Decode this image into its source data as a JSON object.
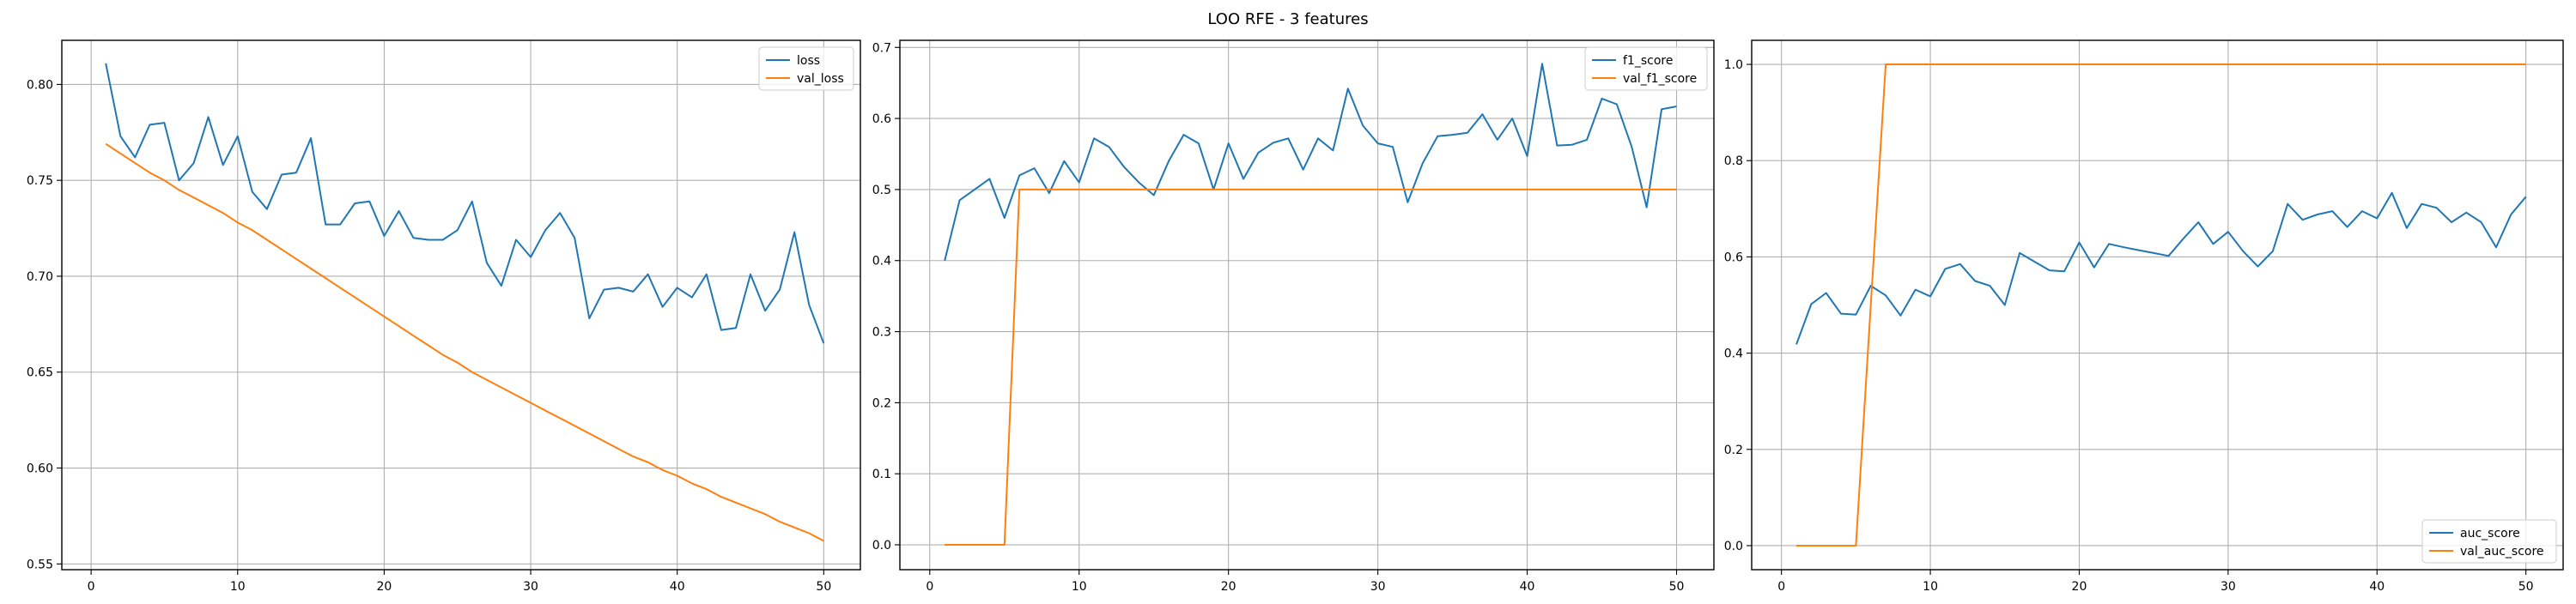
{
  "figure": {
    "suptitle": "LOO RFE - 3 features"
  },
  "colors": {
    "blue": "#1f77b4",
    "orange": "#ff7f0e"
  },
  "chart_data": [
    {
      "type": "line",
      "title": "",
      "xlabel": "",
      "ylabel": "",
      "xlim": [
        -2,
        52.5
      ],
      "ylim": [
        0.547,
        0.823
      ],
      "xticks": [
        0,
        10,
        20,
        30,
        40,
        50
      ],
      "yticks": [
        0.55,
        0.6,
        0.65,
        0.7,
        0.75,
        0.8
      ],
      "ytick_decimals": 2,
      "grid": true,
      "legend": "upper right",
      "series": [
        {
          "name": "loss",
          "color": "#1f77b4",
          "x": [
            1,
            2,
            3,
            4,
            5,
            6,
            7,
            8,
            9,
            10,
            11,
            12,
            13,
            14,
            15,
            16,
            17,
            18,
            19,
            20,
            21,
            22,
            23,
            24,
            25,
            26,
            27,
            28,
            29,
            30,
            31,
            32,
            33,
            34,
            35,
            36,
            37,
            38,
            39,
            40,
            41,
            42,
            43,
            44,
            45,
            46,
            47,
            48,
            49,
            50
          ],
          "y": [
            0.811,
            0.773,
            0.762,
            0.779,
            0.78,
            0.75,
            0.759,
            0.783,
            0.758,
            0.773,
            0.744,
            0.735,
            0.753,
            0.754,
            0.772,
            0.727,
            0.727,
            0.738,
            0.739,
            0.721,
            0.734,
            0.72,
            0.719,
            0.719,
            0.724,
            0.739,
            0.707,
            0.695,
            0.719,
            0.71,
            0.724,
            0.733,
            0.72,
            0.678,
            0.693,
            0.694,
            0.692,
            0.701,
            0.684,
            0.694,
            0.689,
            0.701,
            0.672,
            0.673,
            0.701,
            0.682,
            0.693,
            0.723,
            0.685,
            0.665
          ]
        },
        {
          "name": "val_loss",
          "color": "#ff7f0e",
          "x": [
            1,
            2,
            3,
            4,
            5,
            6,
            7,
            8,
            9,
            10,
            11,
            12,
            13,
            14,
            15,
            16,
            17,
            18,
            19,
            20,
            21,
            22,
            23,
            24,
            25,
            26,
            27,
            28,
            29,
            30,
            31,
            32,
            33,
            34,
            35,
            36,
            37,
            38,
            39,
            40,
            41,
            42,
            43,
            44,
            45,
            46,
            47,
            48,
            49,
            50
          ],
          "y": [
            0.769,
            0.764,
            0.759,
            0.754,
            0.75,
            0.745,
            0.741,
            0.737,
            0.733,
            0.728,
            0.724,
            0.719,
            0.714,
            0.709,
            0.704,
            0.699,
            0.694,
            0.689,
            0.684,
            0.679,
            0.674,
            0.669,
            0.664,
            0.659,
            0.655,
            0.65,
            0.646,
            0.642,
            0.638,
            0.634,
            0.63,
            0.626,
            0.622,
            0.618,
            0.614,
            0.61,
            0.606,
            0.603,
            0.599,
            0.596,
            0.592,
            0.589,
            0.585,
            0.582,
            0.579,
            0.576,
            0.572,
            0.569,
            0.566,
            0.562
          ]
        }
      ]
    },
    {
      "type": "line",
      "title": "",
      "xlabel": "",
      "ylabel": "",
      "xlim": [
        -2,
        52.5
      ],
      "ylim": [
        -0.035,
        0.71
      ],
      "xticks": [
        0,
        10,
        20,
        30,
        40,
        50
      ],
      "yticks": [
        0.0,
        0.1,
        0.2,
        0.3,
        0.4,
        0.5,
        0.6,
        0.7
      ],
      "ytick_decimals": 1,
      "grid": true,
      "legend": "upper right",
      "series": [
        {
          "name": "f1_score",
          "color": "#1f77b4",
          "x": [
            1,
            2,
            3,
            4,
            5,
            6,
            7,
            8,
            9,
            10,
            11,
            12,
            13,
            14,
            15,
            16,
            17,
            18,
            19,
            20,
            21,
            22,
            23,
            24,
            25,
            26,
            27,
            28,
            29,
            30,
            31,
            32,
            33,
            34,
            35,
            36,
            37,
            38,
            39,
            40,
            41,
            42,
            43,
            44,
            45,
            46,
            47,
            48,
            49,
            50
          ],
          "y": [
            0.4,
            0.485,
            0.5,
            0.515,
            0.46,
            0.52,
            0.53,
            0.495,
            0.54,
            0.51,
            0.572,
            0.56,
            0.532,
            0.51,
            0.492,
            0.54,
            0.577,
            0.565,
            0.5,
            0.565,
            0.515,
            0.552,
            0.566,
            0.572,
            0.528,
            0.572,
            0.555,
            0.642,
            0.59,
            0.565,
            0.56,
            0.482,
            0.537,
            0.575,
            0.577,
            0.58,
            0.606,
            0.57,
            0.6,
            0.547,
            0.677,
            0.562,
            0.563,
            0.57,
            0.628,
            0.62,
            0.56,
            0.475,
            0.613,
            0.617
          ]
        },
        {
          "name": "val_f1_score",
          "color": "#ff7f0e",
          "x": [
            1,
            2,
            3,
            4,
            5,
            6,
            7,
            8,
            9,
            10,
            11,
            12,
            13,
            14,
            15,
            16,
            17,
            18,
            19,
            20,
            21,
            22,
            23,
            24,
            25,
            26,
            27,
            28,
            29,
            30,
            31,
            32,
            33,
            34,
            35,
            36,
            37,
            38,
            39,
            40,
            41,
            42,
            43,
            44,
            45,
            46,
            47,
            48,
            49,
            50
          ],
          "y": [
            0,
            0,
            0,
            0,
            0,
            0.5,
            0.5,
            0.5,
            0.5,
            0.5,
            0.5,
            0.5,
            0.5,
            0.5,
            0.5,
            0.5,
            0.5,
            0.5,
            0.5,
            0.5,
            0.5,
            0.5,
            0.5,
            0.5,
            0.5,
            0.5,
            0.5,
            0.5,
            0.5,
            0.5,
            0.5,
            0.5,
            0.5,
            0.5,
            0.5,
            0.5,
            0.5,
            0.5,
            0.5,
            0.5,
            0.5,
            0.5,
            0.5,
            0.5,
            0.5,
            0.5,
            0.5,
            0.5,
            0.5,
            0.5
          ]
        }
      ]
    },
    {
      "type": "line",
      "title": "",
      "xlabel": "",
      "ylabel": "",
      "xlim": [
        -2,
        52.5
      ],
      "ylim": [
        -0.05,
        1.05
      ],
      "xticks": [
        0,
        10,
        20,
        30,
        40,
        50
      ],
      "yticks": [
        0.0,
        0.2,
        0.4,
        0.6,
        0.8,
        1.0
      ],
      "ytick_decimals": 1,
      "grid": true,
      "legend": "lower right",
      "series": [
        {
          "name": "auc_score",
          "color": "#1f77b4",
          "x": [
            1,
            2,
            3,
            4,
            5,
            6,
            7,
            8,
            9,
            10,
            11,
            12,
            13,
            14,
            15,
            16,
            17,
            18,
            19,
            20,
            21,
            22,
            23,
            24,
            25,
            26,
            27,
            28,
            29,
            30,
            31,
            32,
            33,
            34,
            35,
            36,
            37,
            38,
            39,
            40,
            41,
            42,
            43,
            44,
            45,
            46,
            47,
            48,
            49,
            50
          ],
          "y": [
            0.418,
            0.502,
            0.525,
            0.482,
            0.48,
            0.54,
            0.52,
            0.478,
            0.532,
            0.518,
            0.575,
            0.585,
            0.55,
            0.54,
            0.5,
            0.608,
            0.59,
            0.572,
            0.57,
            0.63,
            0.578,
            0.627,
            0.62,
            0.614,
            0.608,
            0.602,
            0.638,
            0.672,
            0.627,
            0.652,
            0.612,
            0.58,
            0.612,
            0.71,
            0.677,
            0.688,
            0.695,
            0.662,
            0.695,
            0.68,
            0.733,
            0.66,
            0.71,
            0.702,
            0.672,
            0.692,
            0.672,
            0.62,
            0.688,
            0.725
          ]
        },
        {
          "name": "val_auc_score",
          "color": "#ff7f0e",
          "x": [
            1,
            2,
            3,
            4,
            5,
            6,
            7,
            8,
            9,
            10,
            11,
            12,
            13,
            14,
            15,
            16,
            17,
            18,
            19,
            20,
            21,
            22,
            23,
            24,
            25,
            26,
            27,
            28,
            29,
            30,
            31,
            32,
            33,
            34,
            35,
            36,
            37,
            38,
            39,
            40,
            41,
            42,
            43,
            44,
            45,
            46,
            47,
            48,
            49,
            50
          ],
          "y": [
            0,
            0,
            0,
            0,
            0,
            0.5,
            1,
            1,
            1,
            1,
            1,
            1,
            1,
            1,
            1,
            1,
            1,
            1,
            1,
            1,
            1,
            1,
            1,
            1,
            1,
            1,
            1,
            1,
            1,
            1,
            1,
            1,
            1,
            1,
            1,
            1,
            1,
            1,
            1,
            1,
            1,
            1,
            1,
            1,
            1,
            1,
            1,
            1,
            1,
            1
          ]
        }
      ]
    }
  ]
}
